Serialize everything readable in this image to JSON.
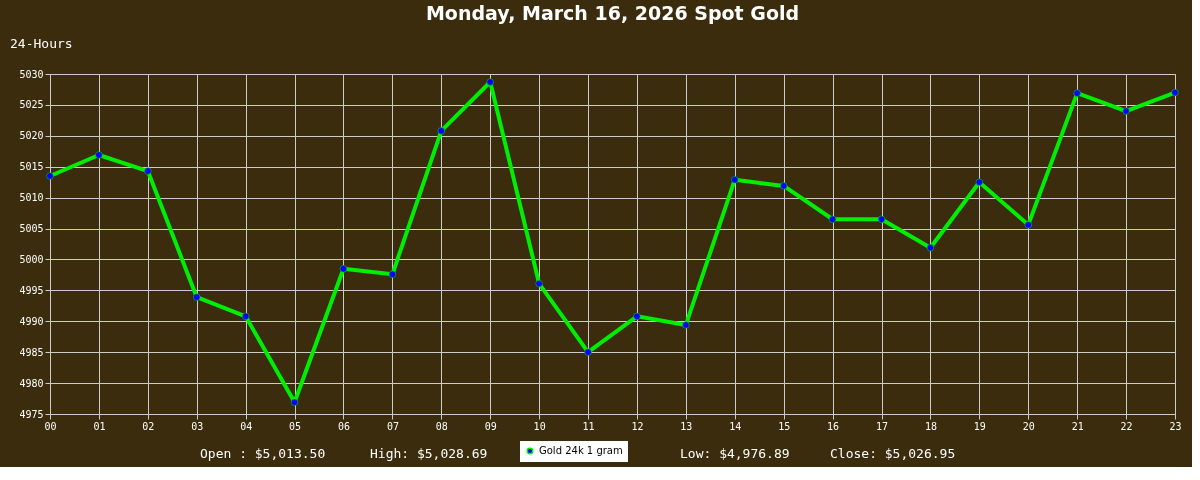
{
  "chart_data": {
    "type": "line",
    "title": "Monday, March 16, 2026 Spot Gold",
    "annotations": [
      "24-Hours",
      "Open : $5,013.50",
      "High: $5,028.69",
      "Low: $4,976.89",
      "Close: $5,026.95"
    ],
    "categories": [
      "00",
      "01",
      "02",
      "03",
      "04",
      "05",
      "06",
      "07",
      "08",
      "09",
      "10",
      "11",
      "12",
      "13",
      "14",
      "15",
      "16",
      "17",
      "18",
      "19",
      "20",
      "21",
      "22",
      "23"
    ],
    "series": [
      {
        "name": "Gold 24k 1 gram",
        "color": "#00ee00",
        "values": [
          5013.5,
          5016.9,
          5014.3,
          4993.9,
          4990.8,
          4976.9,
          4998.5,
          4997.6,
          5020.8,
          5028.7,
          4996.1,
          4985.0,
          4990.8,
          4989.4,
          5012.9,
          5011.9,
          5006.5,
          5006.5,
          5001.9,
          5012.5,
          5005.6,
          5026.9,
          5024.0,
          5027.0
        ]
      }
    ],
    "ylim": [
      4975,
      5030
    ],
    "yticks": [
      4975,
      4980,
      4985,
      4990,
      4995,
      5000,
      5005,
      5010,
      5015,
      5020,
      5025,
      5030
    ],
    "grid": true,
    "legend": "bottom",
    "marker": "circle",
    "line_style": "solid"
  }
}
